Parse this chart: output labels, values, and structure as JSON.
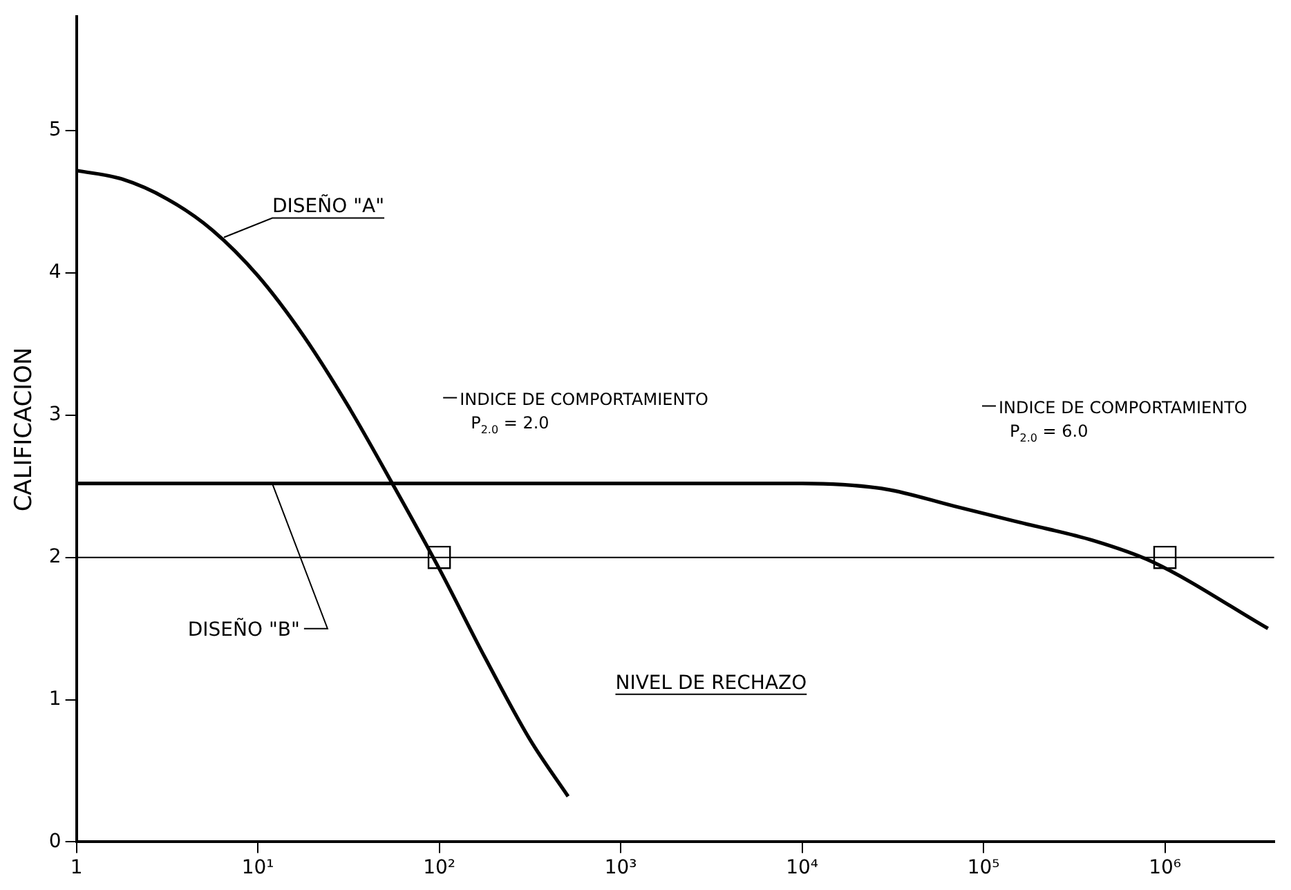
{
  "chart_data": {
    "type": "line",
    "ylabel": "CALIFICACION",
    "log": "x",
    "xlim": [
      1,
      4000000
    ],
    "xticks": [
      1,
      {
        "value": 10,
        "label": "10¹"
      },
      {
        "value": 100,
        "label": "10²"
      },
      {
        "value": 1000,
        "label": "10³"
      },
      {
        "value": 10000,
        "label": "10⁴"
      },
      {
        "value": 100000,
        "label": "10⁵"
      },
      {
        "value": 1000000,
        "label": "10⁶"
      }
    ],
    "ylim": [
      0,
      5.8
    ],
    "yticks": [
      0,
      1,
      2,
      3,
      4,
      5
    ],
    "grid": false,
    "legend": false,
    "marker": "none",
    "line_style": "solid",
    "series": [
      {
        "color": "#000000",
        "x": [
          1,
          1.78,
          3.16,
          5.62,
          10,
          17.8,
          31.6,
          56.2,
          100,
          178,
          316,
          513
        ],
        "values": [
          4.72,
          4.66,
          4.52,
          4.3,
          3.98,
          3.56,
          3.06,
          2.5,
          1.92,
          1.3,
          0.72,
          0.32
        ]
      },
      {
        "color": "#000000",
        "x": [
          1,
          10,
          100,
          1000,
          10000,
          28800,
          69000,
          166000,
          400000,
          850000,
          3700000
        ],
        "values": [
          2.52,
          2.52,
          2.52,
          2.52,
          2.52,
          2.48,
          2.36,
          2.24,
          2.12,
          1.97,
          1.5
        ]
      },
      {
        "type": "scatter",
        "marker": "square",
        "color": "#000000",
        "x": [
          100,
          1000000
        ],
        "values": [
          2,
          2
        ]
      }
    ],
    "ref_lines": [
      {
        "axis": "y",
        "value": 2,
        "label": "NIVEL DE RECHAZO",
        "color": "#000000"
      }
    ],
    "annotations": [
      {
        "text": "DISEÑO \"A\"",
        "x": 6.5,
        "y": 4.25
      },
      {
        "text": "DISEÑO \"B\"",
        "x": 12,
        "y": 2.52
      },
      "INDICE DE COMPORTAMIENTO\nP$_{2.0}$ = 2.0",
      "INDICE DE COMPORTAMIENTO\nP$_{2.0}$ = 6.0"
    ]
  }
}
